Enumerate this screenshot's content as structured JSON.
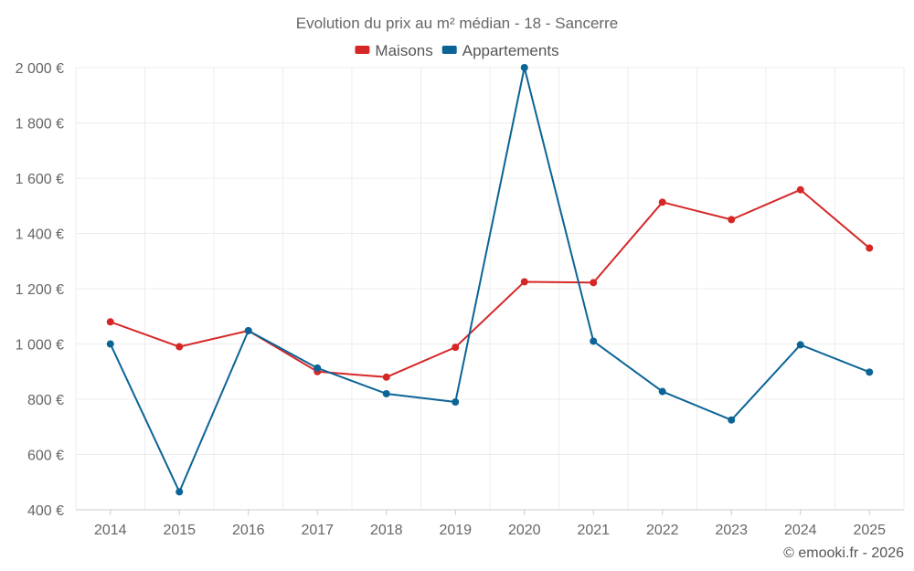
{
  "chart_data": {
    "type": "line",
    "title": "Evolution du prix au m² médian - 18 - Sancerre",
    "categories": [
      "2014",
      "2015",
      "2016",
      "2017",
      "2018",
      "2019",
      "2020",
      "2021",
      "2022",
      "2023",
      "2024",
      "2025"
    ],
    "series": [
      {
        "name": "Maisons",
        "color": "#d62728",
        "values": [
          1080,
          990,
          1048,
          900,
          880,
          988,
          1225,
          1222,
          1513,
          1450,
          1558,
          1347
        ]
      },
      {
        "name": "Appartements",
        "color": "#0b6496",
        "values": [
          1000,
          465,
          1048,
          913,
          820,
          790,
          2000,
          1010,
          828,
          725,
          997,
          898
        ]
      }
    ],
    "y_ticks": [
      {
        "value": 400,
        "label": "400 €"
      },
      {
        "value": 600,
        "label": "600 €"
      },
      {
        "value": 800,
        "label": "800 €"
      },
      {
        "value": 1000,
        "label": "1 000 €"
      },
      {
        "value": 1200,
        "label": "1 200 €"
      },
      {
        "value": 1400,
        "label": "1 400 €"
      },
      {
        "value": 1600,
        "label": "1 600 €"
      },
      {
        "value": 1800,
        "label": "1 800 €"
      },
      {
        "value": 2000,
        "label": "2 000 €"
      }
    ],
    "ylim": [
      400,
      2000
    ],
    "xlabel": "",
    "ylabel": "",
    "grid": true,
    "legend_position": "top-center"
  },
  "credit": "© emooki.fr - 2026"
}
